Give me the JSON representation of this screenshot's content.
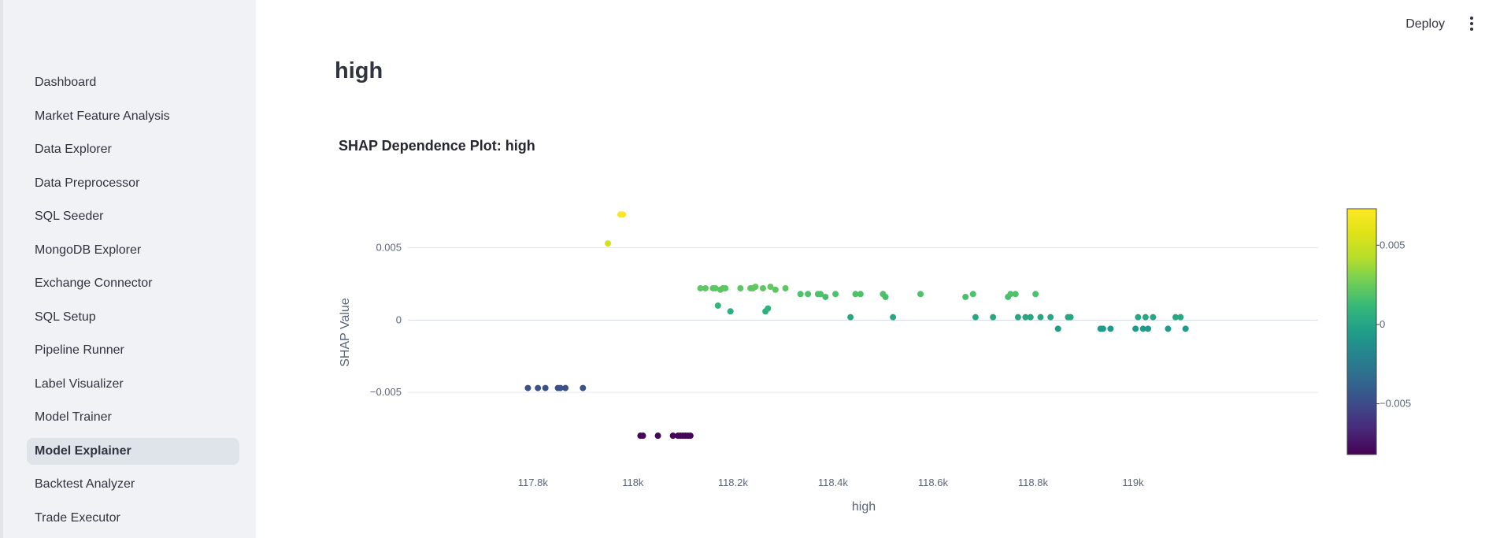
{
  "sidebar": {
    "items": [
      {
        "label": "Dashboard",
        "active": false
      },
      {
        "label": "Market Feature Analysis",
        "active": false
      },
      {
        "label": "Data Explorer",
        "active": false
      },
      {
        "label": "Data Preprocessor",
        "active": false
      },
      {
        "label": "SQL Seeder",
        "active": false
      },
      {
        "label": "MongoDB Explorer",
        "active": false
      },
      {
        "label": "Exchange Connector",
        "active": false
      },
      {
        "label": "SQL Setup",
        "active": false
      },
      {
        "label": "Pipeline Runner",
        "active": false
      },
      {
        "label": "Label Visualizer",
        "active": false
      },
      {
        "label": "Model Trainer",
        "active": false
      },
      {
        "label": "Model Explainer",
        "active": true
      },
      {
        "label": "Backtest Analyzer",
        "active": false
      },
      {
        "label": "Trade Executor",
        "active": false
      }
    ]
  },
  "header": {
    "deploy_label": "Deploy",
    "menu_icon": "vertical-ellipsis-icon"
  },
  "page": {
    "title": "high"
  },
  "chart_data": {
    "type": "scatter",
    "title": "SHAP Dependence Plot: high",
    "xlabel": "high",
    "ylabel": "SHAP Value",
    "xlim": [
      117.55,
      119.37
    ],
    "ylim": [
      -0.0093,
      0.0077
    ],
    "x_ticks": [
      117.8,
      118.0,
      118.2,
      118.4,
      118.6,
      118.8,
      119.0
    ],
    "x_tick_labels": [
      "117.8k",
      "118k",
      "118.2k",
      "118.4k",
      "118.6k",
      "118.8k",
      "119k"
    ],
    "y_ticks": [
      -0.005,
      0,
      0.005
    ],
    "y_tick_labels": [
      "−0.005",
      "0",
      "0.005"
    ],
    "colorbar": {
      "colorscale": "Viridis",
      "range": [
        -0.0082,
        0.0073
      ],
      "ticks": [
        -0.005,
        0,
        0.005
      ],
      "tick_labels": [
        "−0.005",
        "0",
        "0.005"
      ]
    },
    "grid": true,
    "legend": false,
    "points": [
      [
        117.79,
        -0.0047
      ],
      [
        117.81,
        -0.0047
      ],
      [
        117.825,
        -0.0047
      ],
      [
        117.85,
        -0.0047
      ],
      [
        117.855,
        -0.0047
      ],
      [
        117.865,
        -0.0047
      ],
      [
        117.9,
        -0.0047
      ],
      [
        117.95,
        0.0053
      ],
      [
        117.975,
        0.0073
      ],
      [
        117.98,
        0.0073
      ],
      [
        118.015,
        -0.008
      ],
      [
        118.02,
        -0.008
      ],
      [
        118.05,
        -0.008
      ],
      [
        118.08,
        -0.008
      ],
      [
        118.09,
        -0.008
      ],
      [
        118.095,
        -0.008
      ],
      [
        118.1,
        -0.008
      ],
      [
        118.105,
        -0.008
      ],
      [
        118.11,
        -0.008
      ],
      [
        118.115,
        -0.008
      ],
      [
        118.135,
        0.0022
      ],
      [
        118.145,
        0.0022
      ],
      [
        118.16,
        0.0022
      ],
      [
        118.165,
        0.0022
      ],
      [
        118.175,
        0.0021
      ],
      [
        118.18,
        0.0022
      ],
      [
        118.185,
        0.0022
      ],
      [
        118.17,
        0.001
      ],
      [
        118.195,
        0.0006
      ],
      [
        118.215,
        0.0022
      ],
      [
        118.235,
        0.0022
      ],
      [
        118.24,
        0.0022
      ],
      [
        118.245,
        0.0023
      ],
      [
        118.26,
        0.0022
      ],
      [
        118.265,
        0.0006
      ],
      [
        118.27,
        0.0008
      ],
      [
        118.275,
        0.0023
      ],
      [
        118.285,
        0.0021
      ],
      [
        118.305,
        0.0022
      ],
      [
        118.335,
        0.0018
      ],
      [
        118.35,
        0.0018
      ],
      [
        118.37,
        0.0018
      ],
      [
        118.375,
        0.0018
      ],
      [
        118.385,
        0.0016
      ],
      [
        118.405,
        0.0018
      ],
      [
        118.435,
        0.0002
      ],
      [
        118.445,
        0.0018
      ],
      [
        118.455,
        0.0018
      ],
      [
        118.5,
        0.0018
      ],
      [
        118.505,
        0.0016
      ],
      [
        118.52,
        0.0002
      ],
      [
        118.575,
        0.0018
      ],
      [
        118.665,
        0.0016
      ],
      [
        118.68,
        0.0018
      ],
      [
        118.685,
        0.0002
      ],
      [
        118.72,
        0.0002
      ],
      [
        118.75,
        0.0016
      ],
      [
        118.755,
        0.0018
      ],
      [
        118.765,
        0.0018
      ],
      [
        118.77,
        0.0002
      ],
      [
        118.785,
        0.0002
      ],
      [
        118.795,
        0.0002
      ],
      [
        118.805,
        0.0018
      ],
      [
        118.815,
        0.0002
      ],
      [
        118.835,
        0.0002
      ],
      [
        118.85,
        -0.0006
      ],
      [
        118.87,
        0.0002
      ],
      [
        118.875,
        0.0002
      ],
      [
        118.935,
        -0.0006
      ],
      [
        118.94,
        -0.0006
      ],
      [
        118.955,
        -0.0006
      ],
      [
        119.005,
        -0.0006
      ],
      [
        119.01,
        0.0002
      ],
      [
        119.02,
        -0.0006
      ],
      [
        119.025,
        0.0002
      ],
      [
        119.03,
        -0.0006
      ],
      [
        119.04,
        0.0002
      ],
      [
        119.07,
        -0.0006
      ],
      [
        119.085,
        0.0002
      ],
      [
        119.095,
        0.0002
      ],
      [
        119.105,
        -0.0006
      ]
    ]
  }
}
